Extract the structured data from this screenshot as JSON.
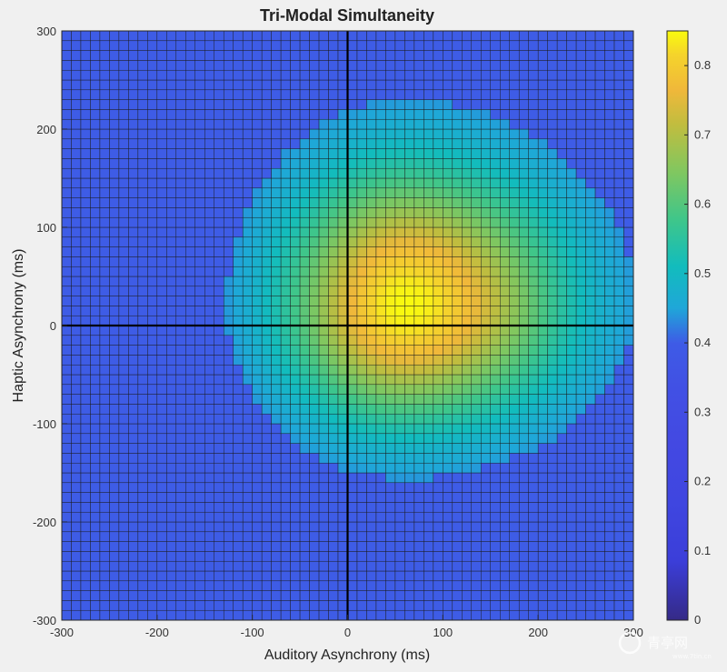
{
  "chart_data": {
    "type": "heatmap",
    "title": "Tri-Modal Simultaneity",
    "xlabel": "Auditory Asynchrony (ms)",
    "ylabel": "Haptic Asynchrony (ms)",
    "xlim": [
      -300,
      300
    ],
    "ylim": [
      -300,
      300
    ],
    "xticks": [
      -300,
      -200,
      -100,
      0,
      100,
      200,
      300
    ],
    "yticks": [
      -300,
      -200,
      -100,
      0,
      100,
      200,
      300
    ],
    "grid": {
      "x_start": -300,
      "x_end": 290,
      "y_start": -300,
      "y_end": 300,
      "step": 10
    },
    "colorbar": {
      "range": [
        0,
        0.85
      ],
      "ticks": [
        0,
        0.1,
        0.2,
        0.3,
        0.4,
        0.5,
        0.6,
        0.7,
        0.8
      ],
      "tick_labels": [
        "0",
        "0.1",
        "0.2",
        "0.3",
        "0.4",
        "0.5",
        "0.6",
        "0.7",
        "0.8"
      ],
      "colormap": "parula"
    },
    "distribution": {
      "baseline": 0.4,
      "peak": 0.85,
      "center_x": 60,
      "center_y": 20,
      "sigma_x_left": 85,
      "sigma_x_right": 110,
      "sigma_y_up": 95,
      "sigma_y_down": 80,
      "cutoff": 0.44
    },
    "reference_lines": {
      "x": 0,
      "y": 0
    }
  },
  "watermark": {
    "text": "青亭网",
    "subtext": "www.7tin.cn"
  }
}
